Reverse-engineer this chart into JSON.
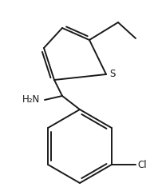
{
  "bg_color": "#ffffff",
  "line_color": "#1a1a1a",
  "line_width": 1.4,
  "text_color": "#1a1a1a",
  "font_size": 8.5,
  "S_label": "S",
  "Cl_label": "Cl",
  "NH2_label": "H₂N"
}
